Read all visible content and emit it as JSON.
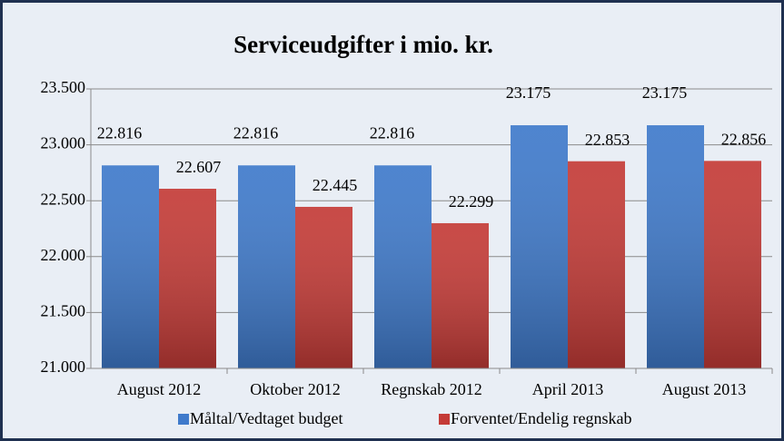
{
  "chart_data": {
    "type": "bar",
    "title": "Serviceudgifter i mio. kr.",
    "categories": [
      "August 2012",
      "Oktober 2012",
      "Regnskab 2012",
      "April 2013",
      "August 2013"
    ],
    "series": [
      {
        "name": "Måltal/Vedtaget budget",
        "color": "#3f7acb",
        "values": [
          22816,
          22816,
          22816,
          23175,
          23175
        ],
        "value_labels": [
          "22.816",
          "22.816",
          "22.816",
          "23.175",
          "23.175"
        ]
      },
      {
        "name": "Forventet/Endelig regnskab",
        "color": "#c43b37",
        "values": [
          22607,
          22445,
          22299,
          22853,
          22856
        ],
        "value_labels": [
          "22.607",
          "22.445",
          "22.299",
          "22.853",
          "22.856"
        ]
      }
    ],
    "ylim": [
      21000,
      23500
    ],
    "yticks": [
      {
        "value": 21000,
        "label": "21.000"
      },
      {
        "value": 21500,
        "label": "21.500"
      },
      {
        "value": 22000,
        "label": "22.000"
      },
      {
        "value": 22500,
        "label": "22.500"
      },
      {
        "value": 23000,
        "label": "23.000"
      },
      {
        "value": 23500,
        "label": "23.500"
      }
    ],
    "grid": true,
    "legend": "bottom"
  }
}
